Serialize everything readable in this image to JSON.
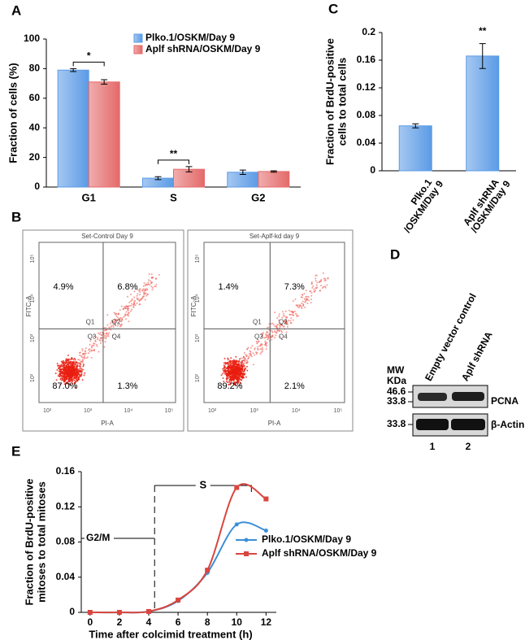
{
  "panel_labels": [
    "A",
    "B",
    "C",
    "D",
    "E"
  ],
  "chart_data": [
    {
      "type": "bar",
      "ylabel": "Fraction of cells (%)",
      "categories": [
        "G1",
        "S",
        "G2"
      ],
      "series": [
        {
          "name": "Plko.1/OSKM/Day 9",
          "color": "#5b9be6",
          "values": [
            79,
            6,
            10
          ],
          "errors": [
            1,
            1,
            1.5
          ]
        },
        {
          "name": "Aplf shRNA/OSKM/Day 9",
          "color": "#e46a6a",
          "values": [
            71,
            12,
            10.5
          ],
          "errors": [
            1.5,
            1.8,
            0.5
          ]
        }
      ],
      "ylim": [
        0,
        100
      ],
      "yticks": [
        0,
        20,
        40,
        60,
        80,
        100
      ],
      "annotations": [
        {
          "text": "*",
          "category": 0
        },
        {
          "text": "**",
          "category": 1
        }
      ]
    },
    {
      "type": "bar",
      "ylabel": [
        "Fraction of BrdU-positive",
        "cells to total cells"
      ],
      "categories": [
        [
          "Plko.1",
          "/OSKM/Day 9"
        ],
        [
          "Aplf shRNA",
          "/OSKM/Day 9"
        ]
      ],
      "values": [
        0.065,
        0.166
      ],
      "errors": [
        0.003,
        0.018
      ],
      "color": "#5b9be6",
      "ylim": [
        0,
        0.2
      ],
      "yticks": [
        0,
        0.04,
        0.08,
        0.12,
        0.16,
        0.2
      ],
      "annotations": [
        {
          "text": "**",
          "category": 1
        }
      ]
    },
    {
      "type": "line",
      "ylabel": [
        "Fraction of BrdU-positive",
        "mitoses to total mitoses"
      ],
      "xlabel": "Time after colcimid treatment (h)",
      "x": [
        0,
        2,
        4,
        6,
        8,
        10,
        12
      ],
      "series": [
        {
          "name": "Plko.1/OSKM/Day 9",
          "color": "#3b8fd9",
          "marker": "circle",
          "values": [
            0,
            0,
            0.001,
            0.013,
            0.045,
            0.1,
            0.093
          ]
        },
        {
          "name": "Aplf shRNA/OSKM/Day 9",
          "color": "#d9463e",
          "marker": "square",
          "values": [
            0,
            0,
            0.001,
            0.014,
            0.048,
            0.142,
            0.129
          ]
        }
      ],
      "xlim": [
        -0.6,
        12.7
      ],
      "xticks": [
        0,
        2,
        4,
        6,
        8,
        10,
        12
      ],
      "ylim": [
        0,
        0.16
      ],
      "yticks": [
        0,
        0.04,
        0.08,
        0.12,
        0.16
      ],
      "phases": [
        {
          "label": "G2/M",
          "range": [
            -0.6,
            4.4
          ]
        },
        {
          "label": "S",
          "range": [
            4.4,
            11
          ]
        }
      ]
    }
  ],
  "flow_cytometry": {
    "plots": [
      {
        "title": "Set-Control Day 9",
        "quadrant_percents": [
          "4.9%",
          "6.8%",
          "87.0%",
          "1.3%"
        ]
      },
      {
        "title": "Set-Aplf-kd day 9",
        "quadrant_percents": [
          "1.4%",
          "7.3%",
          "89.2%",
          "2.1%"
        ]
      }
    ],
    "quadrants": [
      "Q1",
      "Q2",
      "Q3",
      "Q4"
    ],
    "xlabel": "PI-A",
    "ylabel": "FITC-A",
    "ticks": [
      "10²",
      "10³",
      "10⁴",
      "10⁵"
    ]
  },
  "western_blot": {
    "mw_label": "MW",
    "mw_unit": "KDa",
    "markers": [
      "46.6",
      "33.8",
      "33.8"
    ],
    "lanes": [
      "Empty vector control",
      "Aplf shRNA"
    ],
    "lane_numbers": [
      "1",
      "2"
    ],
    "proteins": [
      "PCNA",
      "β-Actin"
    ]
  }
}
